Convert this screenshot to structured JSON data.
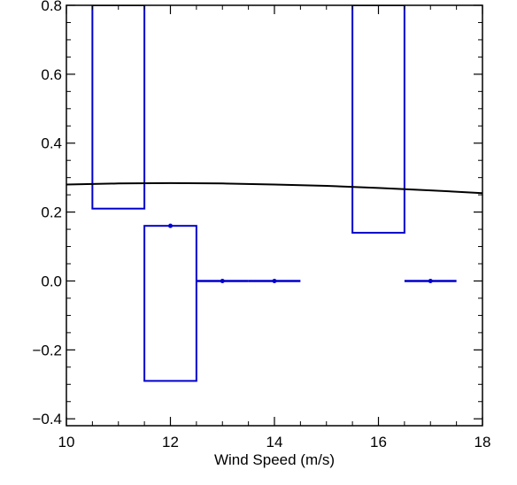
{
  "chart_data": {
    "type": "box",
    "xlabel": "Wind Speed (m/s)",
    "ylabel": "",
    "xlim": [
      10,
      18
    ],
    "ylim": [
      -0.42,
      0.8
    ],
    "x_ticks": [
      10,
      12,
      14,
      16,
      18
    ],
    "x_tick_labels": [
      "10",
      "12",
      "14",
      "16",
      "18"
    ],
    "y_ticks": [
      -0.4,
      -0.2,
      0.0,
      0.2,
      0.4,
      0.6,
      0.8
    ],
    "y_tick_labels": [
      "−0.4",
      "−0.2",
      "0.0",
      "0.2",
      "0.4",
      "0.6",
      "0.8"
    ],
    "grid": false,
    "colors": {
      "boxes": "#0000cc",
      "curve": "#000000",
      "axes": "#000000"
    },
    "boxes": [
      {
        "x": 11,
        "low": 0.21,
        "high": 0.8,
        "median": null
      },
      {
        "x": 12,
        "low": -0.29,
        "high": 0.16,
        "median": 0.16
      },
      {
        "x": 13,
        "low": 0.0,
        "high": 0.0,
        "median": 0.0
      },
      {
        "x": 14,
        "low": 0.0,
        "high": 0.0,
        "median": 0.0
      },
      {
        "x": 16,
        "low": 0.14,
        "high": 0.8,
        "median": null
      },
      {
        "x": 17,
        "low": 0.0,
        "high": 0.0,
        "median": 0.0
      }
    ],
    "box_width": 1.0,
    "curve": {
      "x": [
        10,
        11,
        12,
        13,
        14,
        15,
        16,
        17,
        18
      ],
      "y": [
        0.28,
        0.283,
        0.284,
        0.283,
        0.28,
        0.276,
        0.27,
        0.263,
        0.255
      ]
    }
  }
}
